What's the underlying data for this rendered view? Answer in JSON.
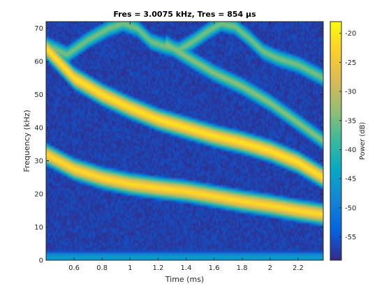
{
  "chart_data": {
    "type": "heatmap",
    "title": "Fres = 3.0075 kHz, Tres = 854 µs",
    "xlabel": "Time (ms)",
    "ylabel": "Frequency (kHz)",
    "colorbar_label": "Power (dB)",
    "xlim": [
      0.4,
      2.38
    ],
    "ylim": [
      0,
      72
    ],
    "clim": [
      -59,
      -18
    ],
    "xticks": [
      0.6,
      0.8,
      1,
      1.2,
      1.4,
      1.6,
      1.8,
      2,
      2.2
    ],
    "xtick_labels": [
      "0.6",
      "0.8",
      "1",
      "1.2",
      "1.4",
      "1.6",
      "1.8",
      "2",
      "2.2"
    ],
    "yticks": [
      0,
      10,
      20,
      30,
      40,
      50,
      60,
      70
    ],
    "ytick_labels": [
      "0",
      "10",
      "20",
      "30",
      "40",
      "50",
      "60",
      "70"
    ],
    "cticks": [
      -55,
      -50,
      -45,
      -40,
      -35,
      -30,
      -25,
      -20
    ],
    "ctick_labels": [
      "-55",
      "-50",
      "-45",
      "-40",
      "-35",
      "-30",
      "-25",
      "-20"
    ],
    "colormap": "parula",
    "colormap_stops": [
      "#352a87",
      "#0363e1",
      "#1485d4",
      "#06a7c6",
      "#38b99e",
      "#92bf73",
      "#d9ba56",
      "#fcce2e",
      "#f9fb0e"
    ],
    "background_level": -57,
    "ridges": [
      {
        "name": "lower harmonic",
        "peak_level": -21,
        "points": [
          [
            0.4,
            32.0
          ],
          [
            0.6,
            27.5
          ],
          [
            0.8,
            24.8
          ],
          [
            1.0,
            23.0
          ],
          [
            1.2,
            21.8
          ],
          [
            1.4,
            20.8
          ],
          [
            1.6,
            19.3
          ],
          [
            1.8,
            17.8
          ],
          [
            2.0,
            16.5
          ],
          [
            2.2,
            15.0
          ],
          [
            2.38,
            13.8
          ]
        ]
      },
      {
        "name": "middle harmonic",
        "peak_level": -20,
        "points": [
          [
            0.4,
            64.0
          ],
          [
            0.6,
            55.0
          ],
          [
            0.8,
            50.0
          ],
          [
            1.0,
            46.0
          ],
          [
            1.2,
            42.5
          ],
          [
            1.4,
            40.0
          ],
          [
            1.6,
            37.5
          ],
          [
            1.8,
            35.5
          ],
          [
            2.0,
            33.0
          ],
          [
            2.2,
            29.5
          ],
          [
            2.38,
            25.0
          ]
        ]
      },
      {
        "name": "upper harmonic",
        "peak_level": -33,
        "points": [
          [
            1.25,
            65.5
          ],
          [
            1.4,
            61.5
          ],
          [
            1.6,
            56.5
          ],
          [
            1.8,
            52.5
          ],
          [
            2.0,
            47.5
          ],
          [
            2.2,
            41.5
          ],
          [
            2.38,
            36.0
          ]
        ]
      },
      {
        "name": "upper-left arc",
        "peak_level": -34,
        "points": [
          [
            0.4,
            65.0
          ],
          [
            0.55,
            62.0
          ],
          [
            0.7,
            66.5
          ],
          [
            0.85,
            70.0
          ],
          [
            0.95,
            71.5
          ],
          [
            1.05,
            70.0
          ],
          [
            1.15,
            66.0
          ],
          [
            1.25,
            64.5
          ],
          [
            1.35,
            63.5
          ]
        ]
      },
      {
        "name": "upper-right arc",
        "peak_level": -34,
        "points": [
          [
            1.35,
            63.5
          ],
          [
            1.45,
            66.0
          ],
          [
            1.55,
            69.0
          ],
          [
            1.65,
            71.5
          ],
          [
            1.75,
            70.5
          ],
          [
            1.85,
            67.0
          ],
          [
            1.95,
            63.0
          ],
          [
            2.05,
            61.0
          ],
          [
            2.2,
            59.0
          ],
          [
            2.38,
            55.0
          ]
        ]
      },
      {
        "name": "baseline",
        "peak_level": -44,
        "points": [
          [
            0.4,
            0.8
          ],
          [
            1.0,
            0.8
          ],
          [
            1.6,
            0.8
          ],
          [
            2.38,
            0.8
          ]
        ]
      }
    ]
  }
}
